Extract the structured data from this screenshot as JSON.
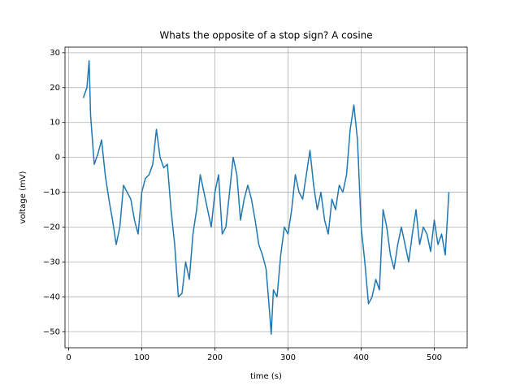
{
  "chart_data": {
    "type": "line",
    "title": "Whats the opposite of a stop sign? A cosine",
    "xlabel": "time (s)",
    "ylabel": "voltage (mV)",
    "x": [
      20,
      25,
      28,
      30,
      35,
      40,
      45,
      50,
      55,
      60,
      65,
      70,
      75,
      80,
      85,
      90,
      95,
      100,
      105,
      110,
      115,
      120,
      125,
      130,
      135,
      140,
      145,
      150,
      155,
      160,
      165,
      170,
      175,
      180,
      185,
      190,
      195,
      200,
      205,
      210,
      215,
      220,
      225,
      230,
      235,
      240,
      245,
      250,
      255,
      260,
      265,
      270,
      275,
      277,
      280,
      285,
      290,
      295,
      300,
      305,
      310,
      315,
      320,
      325,
      330,
      335,
      340,
      345,
      350,
      355,
      360,
      365,
      370,
      375,
      380,
      385,
      390,
      395,
      400,
      405,
      410,
      415,
      420,
      425,
      430,
      435,
      440,
      445,
      450,
      455,
      460,
      465,
      470,
      475,
      480,
      485,
      490,
      495,
      500,
      505,
      510,
      515,
      520
    ],
    "series": [
      {
        "name": "voltage",
        "color": "#1f77b4",
        "values": [
          17,
          20,
          27.7,
          12,
          -2,
          1,
          5,
          -5,
          -12,
          -18,
          -25,
          -20,
          -8,
          -10,
          -12,
          -18,
          -22,
          -10,
          -6,
          -5,
          -2,
          8,
          0,
          -3,
          -2,
          -15,
          -25,
          -40,
          -39,
          -30,
          -35,
          -22,
          -15,
          -5,
          -10,
          -15,
          -20,
          -10,
          -5,
          -22,
          -20,
          -10,
          0,
          -5,
          -18,
          -12,
          -8,
          -12,
          -18,
          -25,
          -28,
          -32,
          -45,
          -50.7,
          -38,
          -40,
          -28,
          -20,
          -22,
          -15,
          -5,
          -10,
          -12,
          -5,
          2,
          -8,
          -15,
          -10,
          -18,
          -22,
          -12,
          -15,
          -8,
          -10,
          -5,
          8,
          15,
          5,
          -20,
          -30,
          -42,
          -40,
          -35,
          -38,
          -15,
          -20,
          -28,
          -32,
          -25,
          -20,
          -25,
          -30,
          -22,
          -15,
          -25,
          -20,
          -22,
          -27,
          -18,
          -25,
          -22,
          -28,
          -10
        ]
      }
    ],
    "xlim": [
      -5,
      545
    ],
    "ylim": [
      -54.6,
      31.6
    ],
    "xticks": [
      0,
      100,
      200,
      300,
      400,
      500
    ],
    "yticks": [
      {
        "value": -50,
        "label": "−50"
      },
      {
        "value": -40,
        "label": "−40"
      },
      {
        "value": -30,
        "label": "−30"
      },
      {
        "value": -20,
        "label": "−20"
      },
      {
        "value": -10,
        "label": "−10"
      },
      0,
      10,
      20,
      30
    ],
    "grid": true
  }
}
